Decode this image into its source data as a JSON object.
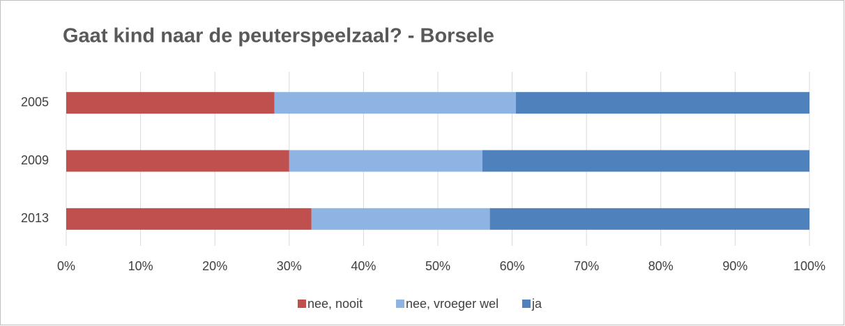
{
  "chart_data": {
    "type": "stacked-barh",
    "title": "Gaat kind naar de peuterspeelzaal? - Borsele",
    "categories": [
      "2005",
      "2009",
      "2013"
    ],
    "series": [
      {
        "name": "nee, nooit",
        "color": "#c0504d",
        "values": [
          28,
          30,
          33
        ]
      },
      {
        "name": "nee, vroeger wel",
        "color": "#8eb4e3",
        "values": [
          32.5,
          26,
          24
        ]
      },
      {
        "name": "ja",
        "color": "#4f81bd",
        "values": [
          39.5,
          44,
          43
        ]
      }
    ],
    "xlim": [
      0,
      100
    ],
    "xticks": [
      {
        "value": 0,
        "label": "0%"
      },
      {
        "value": 10,
        "label": "10%"
      },
      {
        "value": 20,
        "label": "20%"
      },
      {
        "value": 30,
        "label": "30%"
      },
      {
        "value": 40,
        "label": "40%"
      },
      {
        "value": 50,
        "label": "50%"
      },
      {
        "value": 60,
        "label": "60%"
      },
      {
        "value": 70,
        "label": "70%"
      },
      {
        "value": 80,
        "label": "80%"
      },
      {
        "value": 90,
        "label": "90%"
      },
      {
        "value": 100,
        "label": "100%"
      }
    ],
    "grid": true,
    "legend": "bottom"
  }
}
